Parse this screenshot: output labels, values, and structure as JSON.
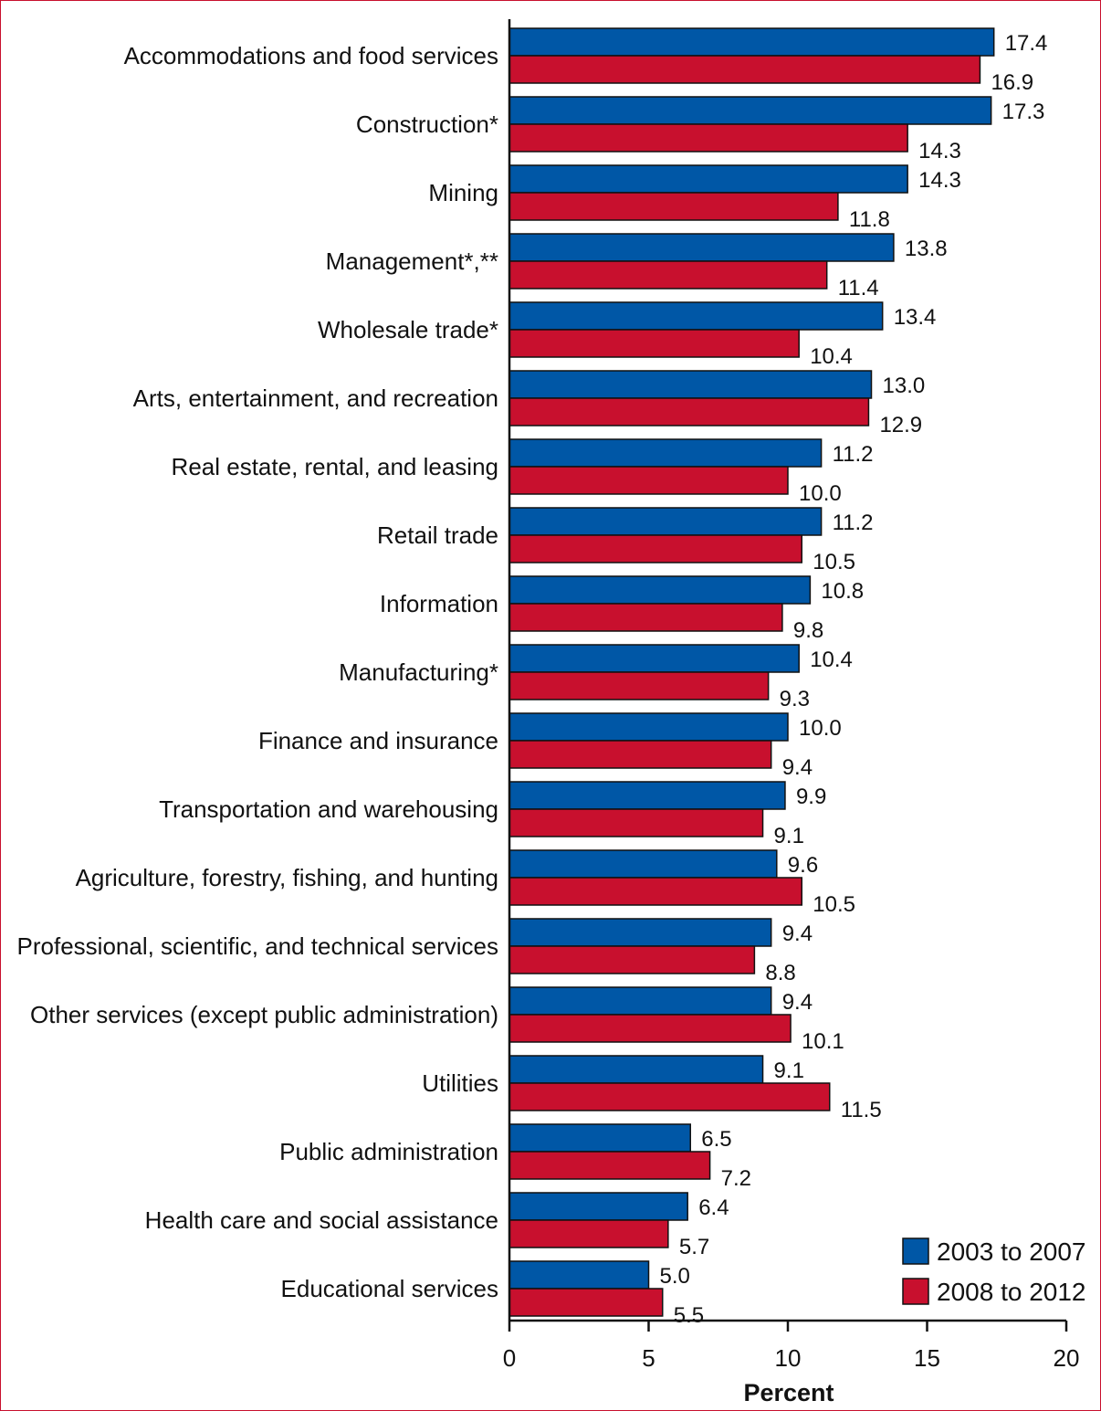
{
  "chart_data": {
    "type": "bar",
    "orientation": "horizontal",
    "categories": [
      "Accommodations and food services",
      "Construction*",
      "Mining",
      "Management*,**",
      "Wholesale trade*",
      "Arts, entertainment, and recreation",
      "Real estate, rental, and leasing",
      "Retail trade",
      "Information",
      "Manufacturing*",
      "Finance and insurance",
      "Transportation and warehousing",
      "Agriculture, forestry, fishing, and hunting",
      "Professional, scientific, and technical services",
      "Other services (except public administration)",
      "Utilities",
      "Public administration",
      "Health care and social assistance",
      "Educational services"
    ],
    "series": [
      {
        "name": "2003 to 2007",
        "color": "#0057a6",
        "values": [
          17.4,
          17.3,
          14.3,
          13.8,
          13.4,
          13.0,
          11.2,
          11.2,
          10.8,
          10.4,
          10.0,
          9.9,
          9.6,
          9.4,
          9.4,
          9.1,
          6.5,
          6.4,
          5.0
        ],
        "labels": [
          "17.4",
          "17.3",
          "14.3",
          "13.8",
          "13.4",
          "13.0",
          "11.2",
          "11.2",
          "10.8",
          "10.4",
          "10.0",
          "9.9",
          "9.6",
          "9.4",
          "9.4",
          "9.1",
          "6.5",
          "6.4",
          "5.0"
        ]
      },
      {
        "name": "2008 to 2012",
        "color": "#c8102e",
        "values": [
          16.9,
          14.3,
          11.8,
          11.4,
          10.4,
          12.9,
          10.0,
          10.5,
          9.8,
          9.3,
          9.4,
          9.1,
          10.5,
          8.8,
          10.1,
          11.5,
          7.2,
          5.7,
          5.5
        ],
        "labels": [
          "16.9",
          "14.3",
          "11.8",
          "11.4",
          "10.4",
          "12.9",
          "10.0",
          "10.5",
          "9.8",
          "9.3",
          "9.4",
          "9.1",
          "10.5",
          "8.8",
          "10.1",
          "11.5",
          "7.2",
          "5.7",
          "5.5"
        ]
      }
    ],
    "xlabel": "Percent",
    "xlim": [
      0,
      20
    ],
    "xticks": [
      "0",
      "5",
      "10",
      "15",
      "20"
    ],
    "grid": false,
    "legend_position": "bottom-right"
  }
}
